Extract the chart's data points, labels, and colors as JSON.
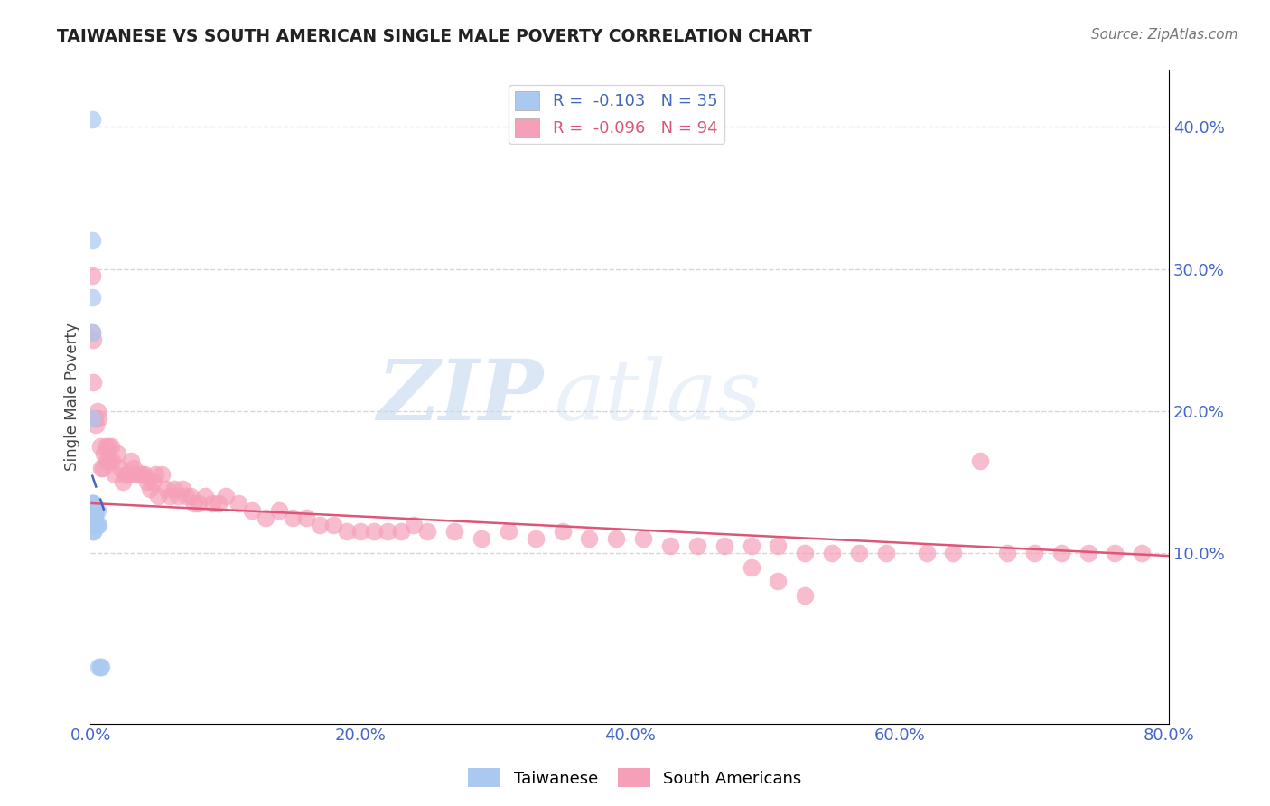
{
  "title": "TAIWANESE VS SOUTH AMERICAN SINGLE MALE POVERTY CORRELATION CHART",
  "source": "Source: ZipAtlas.com",
  "xlabel": "",
  "ylabel": "Single Male Poverty",
  "xlim": [
    0.0,
    0.8
  ],
  "ylim": [
    -0.02,
    0.44
  ],
  "xticks": [
    0.0,
    0.2,
    0.4,
    0.6,
    0.8
  ],
  "xticklabels": [
    "0.0%",
    "20.0%",
    "40.0%",
    "60.0%",
    "80.0%"
  ],
  "yticks": [
    0.1,
    0.2,
    0.3,
    0.4
  ],
  "yticklabels": [
    "10.0%",
    "20.0%",
    "30.0%",
    "40.0%"
  ],
  "watermark_zip": "ZIP",
  "watermark_atlas": "atlas",
  "tw_r": -0.103,
  "tw_n": 35,
  "sa_r": -0.096,
  "sa_n": 94,
  "tw_color": "#aac8f0",
  "sa_color": "#f5a0b8",
  "tw_line_color": "#4466bb",
  "sa_line_color": "#dd5577",
  "background_color": "#ffffff",
  "tick_color": "#4466cc",
  "grid_color": "#cccccc",
  "taiwanese_x": [
    0.001,
    0.001,
    0.001,
    0.001,
    0.001,
    0.001,
    0.001,
    0.001,
    0.001,
    0.001,
    0.001,
    0.001,
    0.002,
    0.002,
    0.002,
    0.002,
    0.002,
    0.002,
    0.002,
    0.002,
    0.002,
    0.002,
    0.003,
    0.003,
    0.003,
    0.003,
    0.003,
    0.004,
    0.004,
    0.005,
    0.005,
    0.006,
    0.006,
    0.007,
    0.008
  ],
  "taiwanese_y": [
    0.405,
    0.32,
    0.28,
    0.255,
    0.195,
    0.135,
    0.135,
    0.135,
    0.13,
    0.13,
    0.125,
    0.125,
    0.135,
    0.13,
    0.13,
    0.13,
    0.125,
    0.125,
    0.12,
    0.12,
    0.115,
    0.115,
    0.13,
    0.13,
    0.125,
    0.125,
    0.12,
    0.13,
    0.12,
    0.13,
    0.12,
    0.12,
    0.02,
    0.02,
    0.02
  ],
  "south_american_x": [
    0.001,
    0.001,
    0.002,
    0.002,
    0.003,
    0.004,
    0.005,
    0.006,
    0.007,
    0.008,
    0.009,
    0.01,
    0.011,
    0.012,
    0.013,
    0.014,
    0.015,
    0.016,
    0.018,
    0.02,
    0.022,
    0.024,
    0.026,
    0.028,
    0.03,
    0.032,
    0.034,
    0.036,
    0.038,
    0.04,
    0.042,
    0.044,
    0.046,
    0.048,
    0.05,
    0.053,
    0.056,
    0.059,
    0.062,
    0.065,
    0.068,
    0.071,
    0.074,
    0.077,
    0.08,
    0.085,
    0.09,
    0.095,
    0.1,
    0.11,
    0.12,
    0.13,
    0.14,
    0.15,
    0.16,
    0.17,
    0.18,
    0.19,
    0.2,
    0.21,
    0.22,
    0.23,
    0.24,
    0.25,
    0.27,
    0.29,
    0.31,
    0.33,
    0.35,
    0.37,
    0.39,
    0.41,
    0.43,
    0.45,
    0.47,
    0.49,
    0.51,
    0.53,
    0.55,
    0.57,
    0.59,
    0.62,
    0.64,
    0.66,
    0.68,
    0.7,
    0.72,
    0.74,
    0.76,
    0.78,
    0.49,
    0.51,
    0.53
  ],
  "south_american_y": [
    0.295,
    0.255,
    0.22,
    0.25,
    0.195,
    0.19,
    0.2,
    0.195,
    0.175,
    0.16,
    0.16,
    0.17,
    0.175,
    0.165,
    0.175,
    0.165,
    0.175,
    0.165,
    0.155,
    0.17,
    0.16,
    0.15,
    0.155,
    0.155,
    0.165,
    0.16,
    0.155,
    0.155,
    0.155,
    0.155,
    0.15,
    0.145,
    0.15,
    0.155,
    0.14,
    0.155,
    0.145,
    0.14,
    0.145,
    0.14,
    0.145,
    0.14,
    0.14,
    0.135,
    0.135,
    0.14,
    0.135,
    0.135,
    0.14,
    0.135,
    0.13,
    0.125,
    0.13,
    0.125,
    0.125,
    0.12,
    0.12,
    0.115,
    0.115,
    0.115,
    0.115,
    0.115,
    0.12,
    0.115,
    0.115,
    0.11,
    0.115,
    0.11,
    0.115,
    0.11,
    0.11,
    0.11,
    0.105,
    0.105,
    0.105,
    0.105,
    0.105,
    0.1,
    0.1,
    0.1,
    0.1,
    0.1,
    0.1,
    0.165,
    0.1,
    0.1,
    0.1,
    0.1,
    0.1,
    0.1,
    0.09,
    0.08,
    0.07
  ],
  "sa_trend_x": [
    0.0,
    0.8
  ],
  "sa_trend_y": [
    0.135,
    0.098
  ],
  "tw_trend_x": [
    0.001,
    0.01
  ],
  "tw_trend_y": [
    0.155,
    0.13
  ]
}
